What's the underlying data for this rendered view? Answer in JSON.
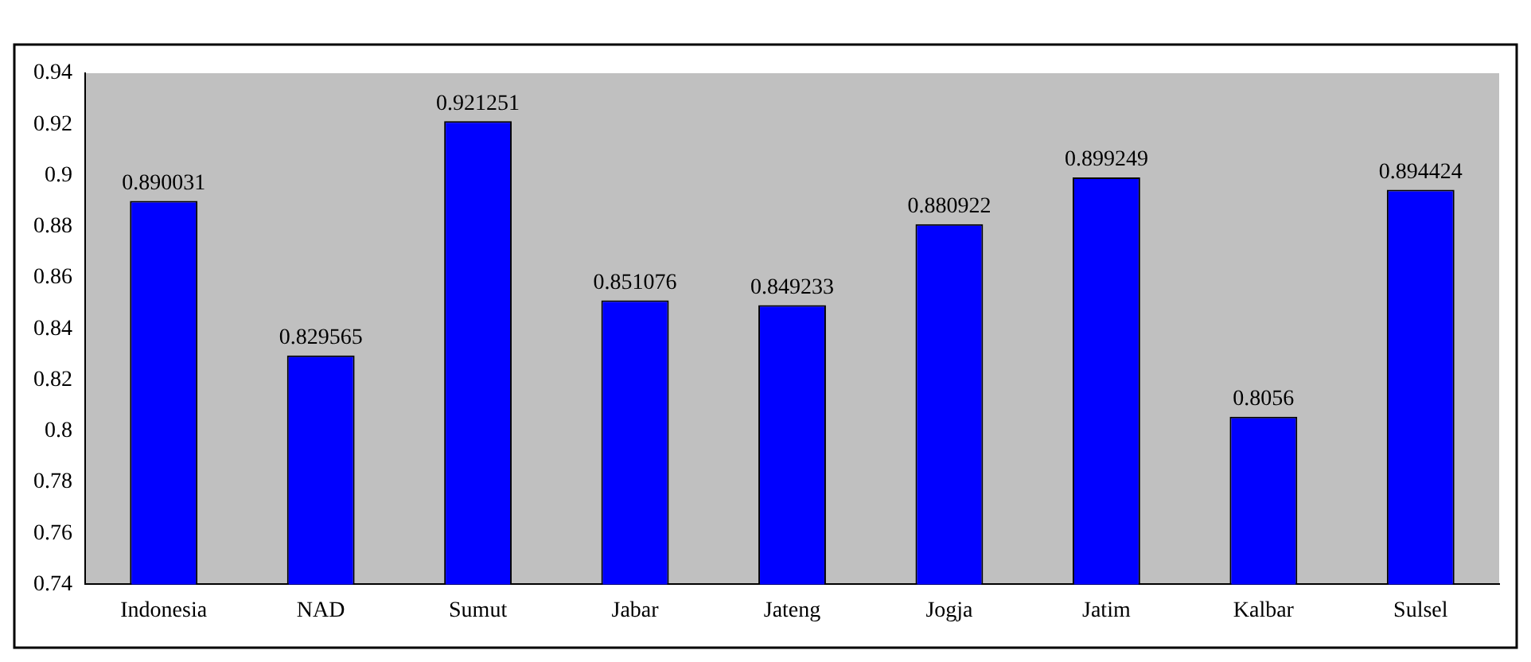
{
  "chart_data": {
    "type": "bar",
    "categories": [
      "Indonesia",
      "NAD",
      "Sumut",
      "Jabar",
      "Jateng",
      "Jogja",
      "Jatim",
      "Kalbar",
      "Sulsel"
    ],
    "values": [
      0.890031,
      0.829565,
      0.921251,
      0.851076,
      0.849233,
      0.880922,
      0.899249,
      0.8056,
      0.894424
    ],
    "color": "#0000ff",
    "ylim": [
      0.74,
      0.94
    ],
    "yticks": [
      0.74,
      0.76,
      0.78,
      0.8,
      0.82,
      0.84,
      0.86,
      0.88,
      0.9,
      0.92,
      0.94
    ],
    "data_labels": true,
    "grid": false,
    "legend": false
  }
}
